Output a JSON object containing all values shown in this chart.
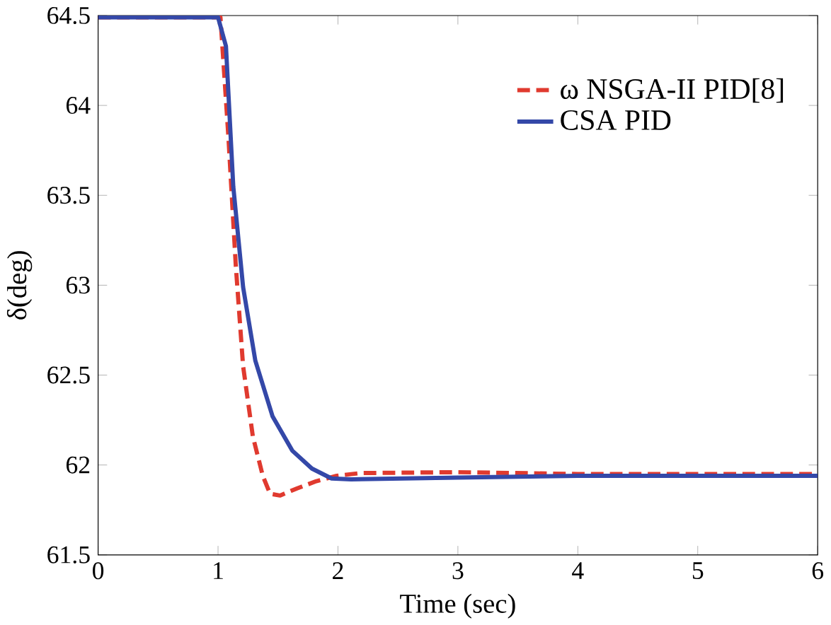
{
  "chart_data": {
    "type": "line",
    "xlabel": "Time (sec)",
    "ylabel": "δ(deg)",
    "xlim": [
      0,
      6
    ],
    "ylim": [
      61.5,
      64.5
    ],
    "xticks": [
      0,
      1,
      2,
      3,
      4,
      5,
      6
    ],
    "yticks": [
      61.5,
      62,
      62.5,
      63,
      63.5,
      64,
      64.5
    ],
    "legend": "top right",
    "grid": false,
    "series": [
      {
        "name": "ω NSGA-II PID[8]",
        "color": "#e03a2f",
        "line_style": "dashed",
        "x": [
          0,
          1.0,
          1.02,
          1.086,
          1.148,
          1.209,
          1.29,
          1.373,
          1.434,
          1.516,
          1.66,
          1.82,
          1.99,
          2.19,
          3,
          4,
          5,
          6
        ],
        "values": [
          64.49,
          64.49,
          64.49,
          63.83,
          63.11,
          62.55,
          62.16,
          61.94,
          61.84,
          61.83,
          61.87,
          61.91,
          61.94,
          61.955,
          61.96,
          61.95,
          61.95,
          61.95
        ]
      },
      {
        "name": "CSA PID",
        "color": "#3448a8",
        "line_style": "solid",
        "x": [
          0,
          1.0,
          1.066,
          1.127,
          1.209,
          1.311,
          1.455,
          1.619,
          1.783,
          1.947,
          2.11,
          3,
          4,
          5,
          6
        ],
        "values": [
          64.49,
          64.49,
          64.33,
          63.55,
          62.99,
          62.58,
          62.27,
          62.08,
          61.98,
          61.925,
          61.92,
          61.93,
          61.94,
          61.94,
          61.94
        ]
      }
    ]
  }
}
